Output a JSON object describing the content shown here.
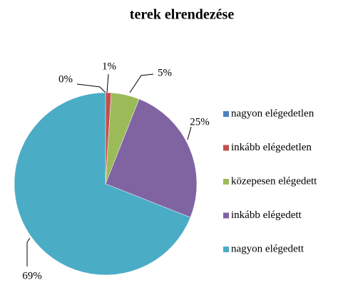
{
  "chart_data": {
    "type": "pie",
    "title": "terek elrendezése",
    "categories": [
      "nagyon elégedetlen",
      "inkább elégedetlen",
      "közepesen elégedett",
      "inkább elégedett",
      "nagyon elégedett"
    ],
    "values": [
      0,
      1,
      5,
      25,
      69
    ],
    "value_labels": [
      "0%",
      "1%",
      "5%",
      "25%",
      "69%"
    ],
    "colors": [
      "#4f81bd",
      "#c0504d",
      "#9bbb59",
      "#8064a2",
      "#4bacc6"
    ],
    "legend": "right"
  }
}
